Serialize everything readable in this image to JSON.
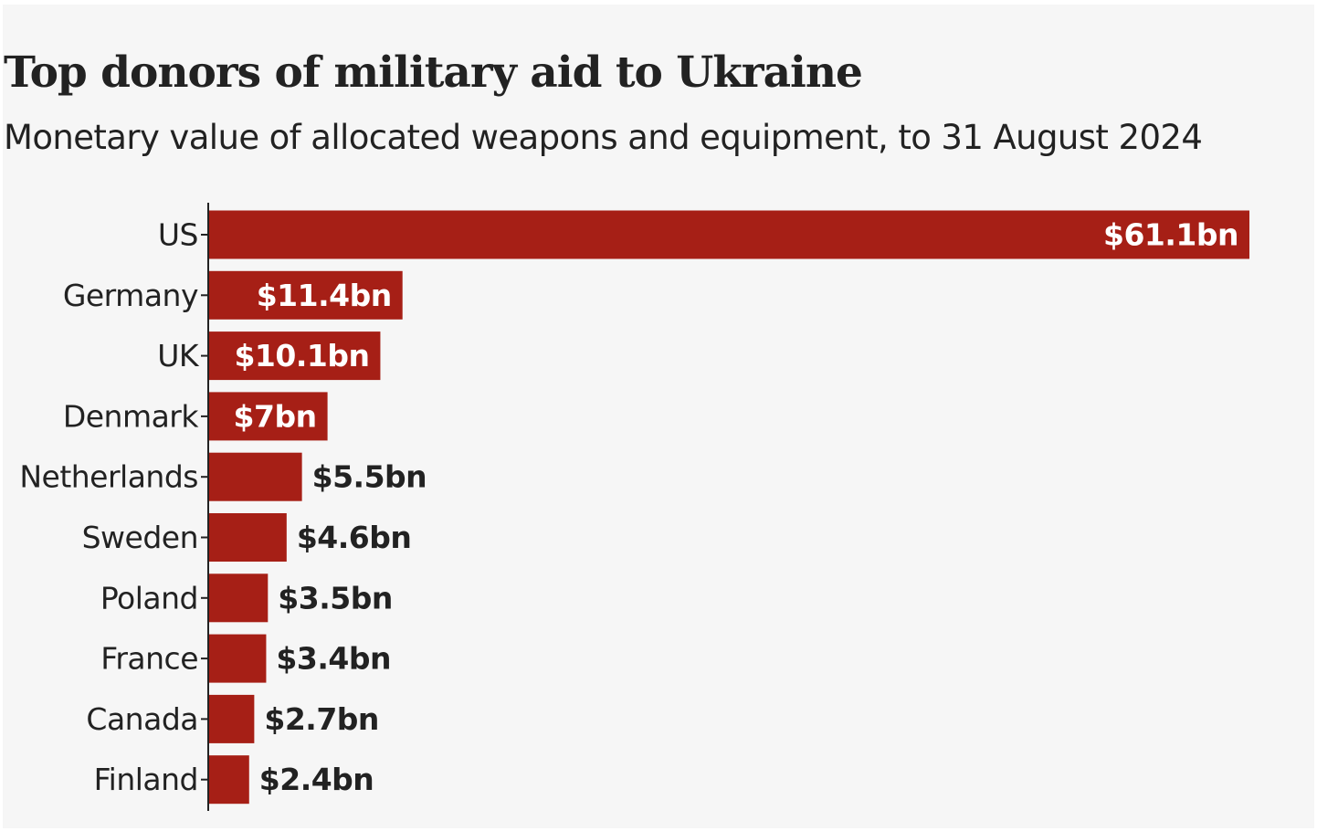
{
  "chart_data": {
    "type": "bar",
    "orientation": "horizontal",
    "title": "Top donors of military aid to Ukraine",
    "subtitle": "Monetary value of allocated weapons and equipment, to 31 August 2024",
    "categories": [
      "US",
      "Germany",
      "UK",
      "Denmark",
      "Netherlands",
      "Sweden",
      "Poland",
      "France",
      "Canada",
      "Finland"
    ],
    "values": [
      61.1,
      11.4,
      10.1,
      7,
      5.5,
      4.6,
      3.5,
      3.4,
      2.7,
      2.4
    ],
    "value_labels": [
      "$61.1bn",
      "$11.4bn",
      "$10.1bn",
      "$7bn",
      "$5.5bn",
      "$4.6bn",
      "$3.5bn",
      "$3.4bn",
      "$2.7bn",
      "$2.4bn"
    ],
    "unit": "$bn",
    "xlim": [
      0,
      61.1
    ],
    "xlabel": "",
    "ylabel": "",
    "grid": false,
    "legend": "none"
  },
  "colors": {
    "bar": "#a61f16",
    "axis": "#222222",
    "label_inside": "#ffffff",
    "label_outside": "#222222",
    "background": "#f6f6f6"
  }
}
